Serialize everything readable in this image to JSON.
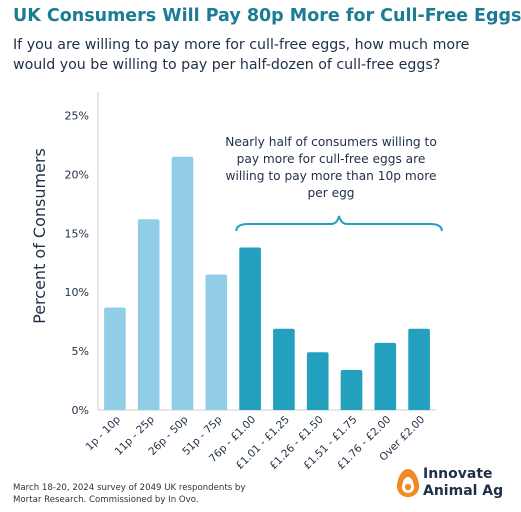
{
  "header": {
    "title": "UK Consumers Will Pay 80p More for Cull-Free Eggs",
    "subtitle": "If you are willing to pay more for cull-free eggs, how much more would you be willing to pay per half-dozen of cull-free eggs?"
  },
  "chart_data": {
    "type": "bar",
    "title": "UK Consumers Will Pay 80p More for Cull-Free Eggs",
    "subtitle": "If you are willing to pay more for cull-free eggs, how much more would you be willing to pay per half-dozen of cull-free eggs?",
    "ylabel": "Percent of Consumers",
    "xlabel": "",
    "ylim": [
      0,
      27
    ],
    "yticks": [
      "0%",
      "5%",
      "10%",
      "15%",
      "20%",
      "25%"
    ],
    "ytick_values": [
      0,
      5,
      10,
      15,
      20,
      25
    ],
    "grid": false,
    "categories": [
      "1p - 10p",
      "11p - 25p",
      "26p - 50p",
      "51p - 75p",
      "76p - £1.00",
      "£1.01 - £1.25",
      "£1.26 - £1.50",
      "£1.51 - £1.75",
      "£1.76 - £2.00",
      "Over £2.00"
    ],
    "values": [
      8.7,
      16.2,
      21.5,
      11.5,
      13.8,
      6.9,
      4.9,
      3.4,
      5.7,
      6.9
    ],
    "bar_colors": [
      "#92cde7",
      "#92cde7",
      "#92cde7",
      "#92cde7",
      "#22a0bd",
      "#22a0bd",
      "#22a0bd",
      "#22a0bd",
      "#22a0bd",
      "#22a0bd"
    ],
    "annotation": "Nearly half of consumers willing to pay more for cull-free eggs are willing to pay more than 10p more per egg",
    "annotation_lines": [
      "Nearly half of consumers willing to",
      "pay more for cull-free eggs are",
      "willing to pay more than 10p more",
      "per egg"
    ],
    "annotation_span": [
      "76p - £1.00",
      "Over £2.00"
    ]
  },
  "footer": {
    "source_note": "March 18-20, 2024 survey of 2049 UK respondents by Mortar Research. Commissioned by In Ovo."
  },
  "brand": {
    "name": "Innovate Animal Ag",
    "icon": "egg-logo-icon",
    "colors": {
      "primary": "#1c7c94",
      "light_bar": "#92cde7",
      "dark_bar": "#22a0bd",
      "accent": "#f08a24",
      "text": "#1f2f46"
    }
  }
}
